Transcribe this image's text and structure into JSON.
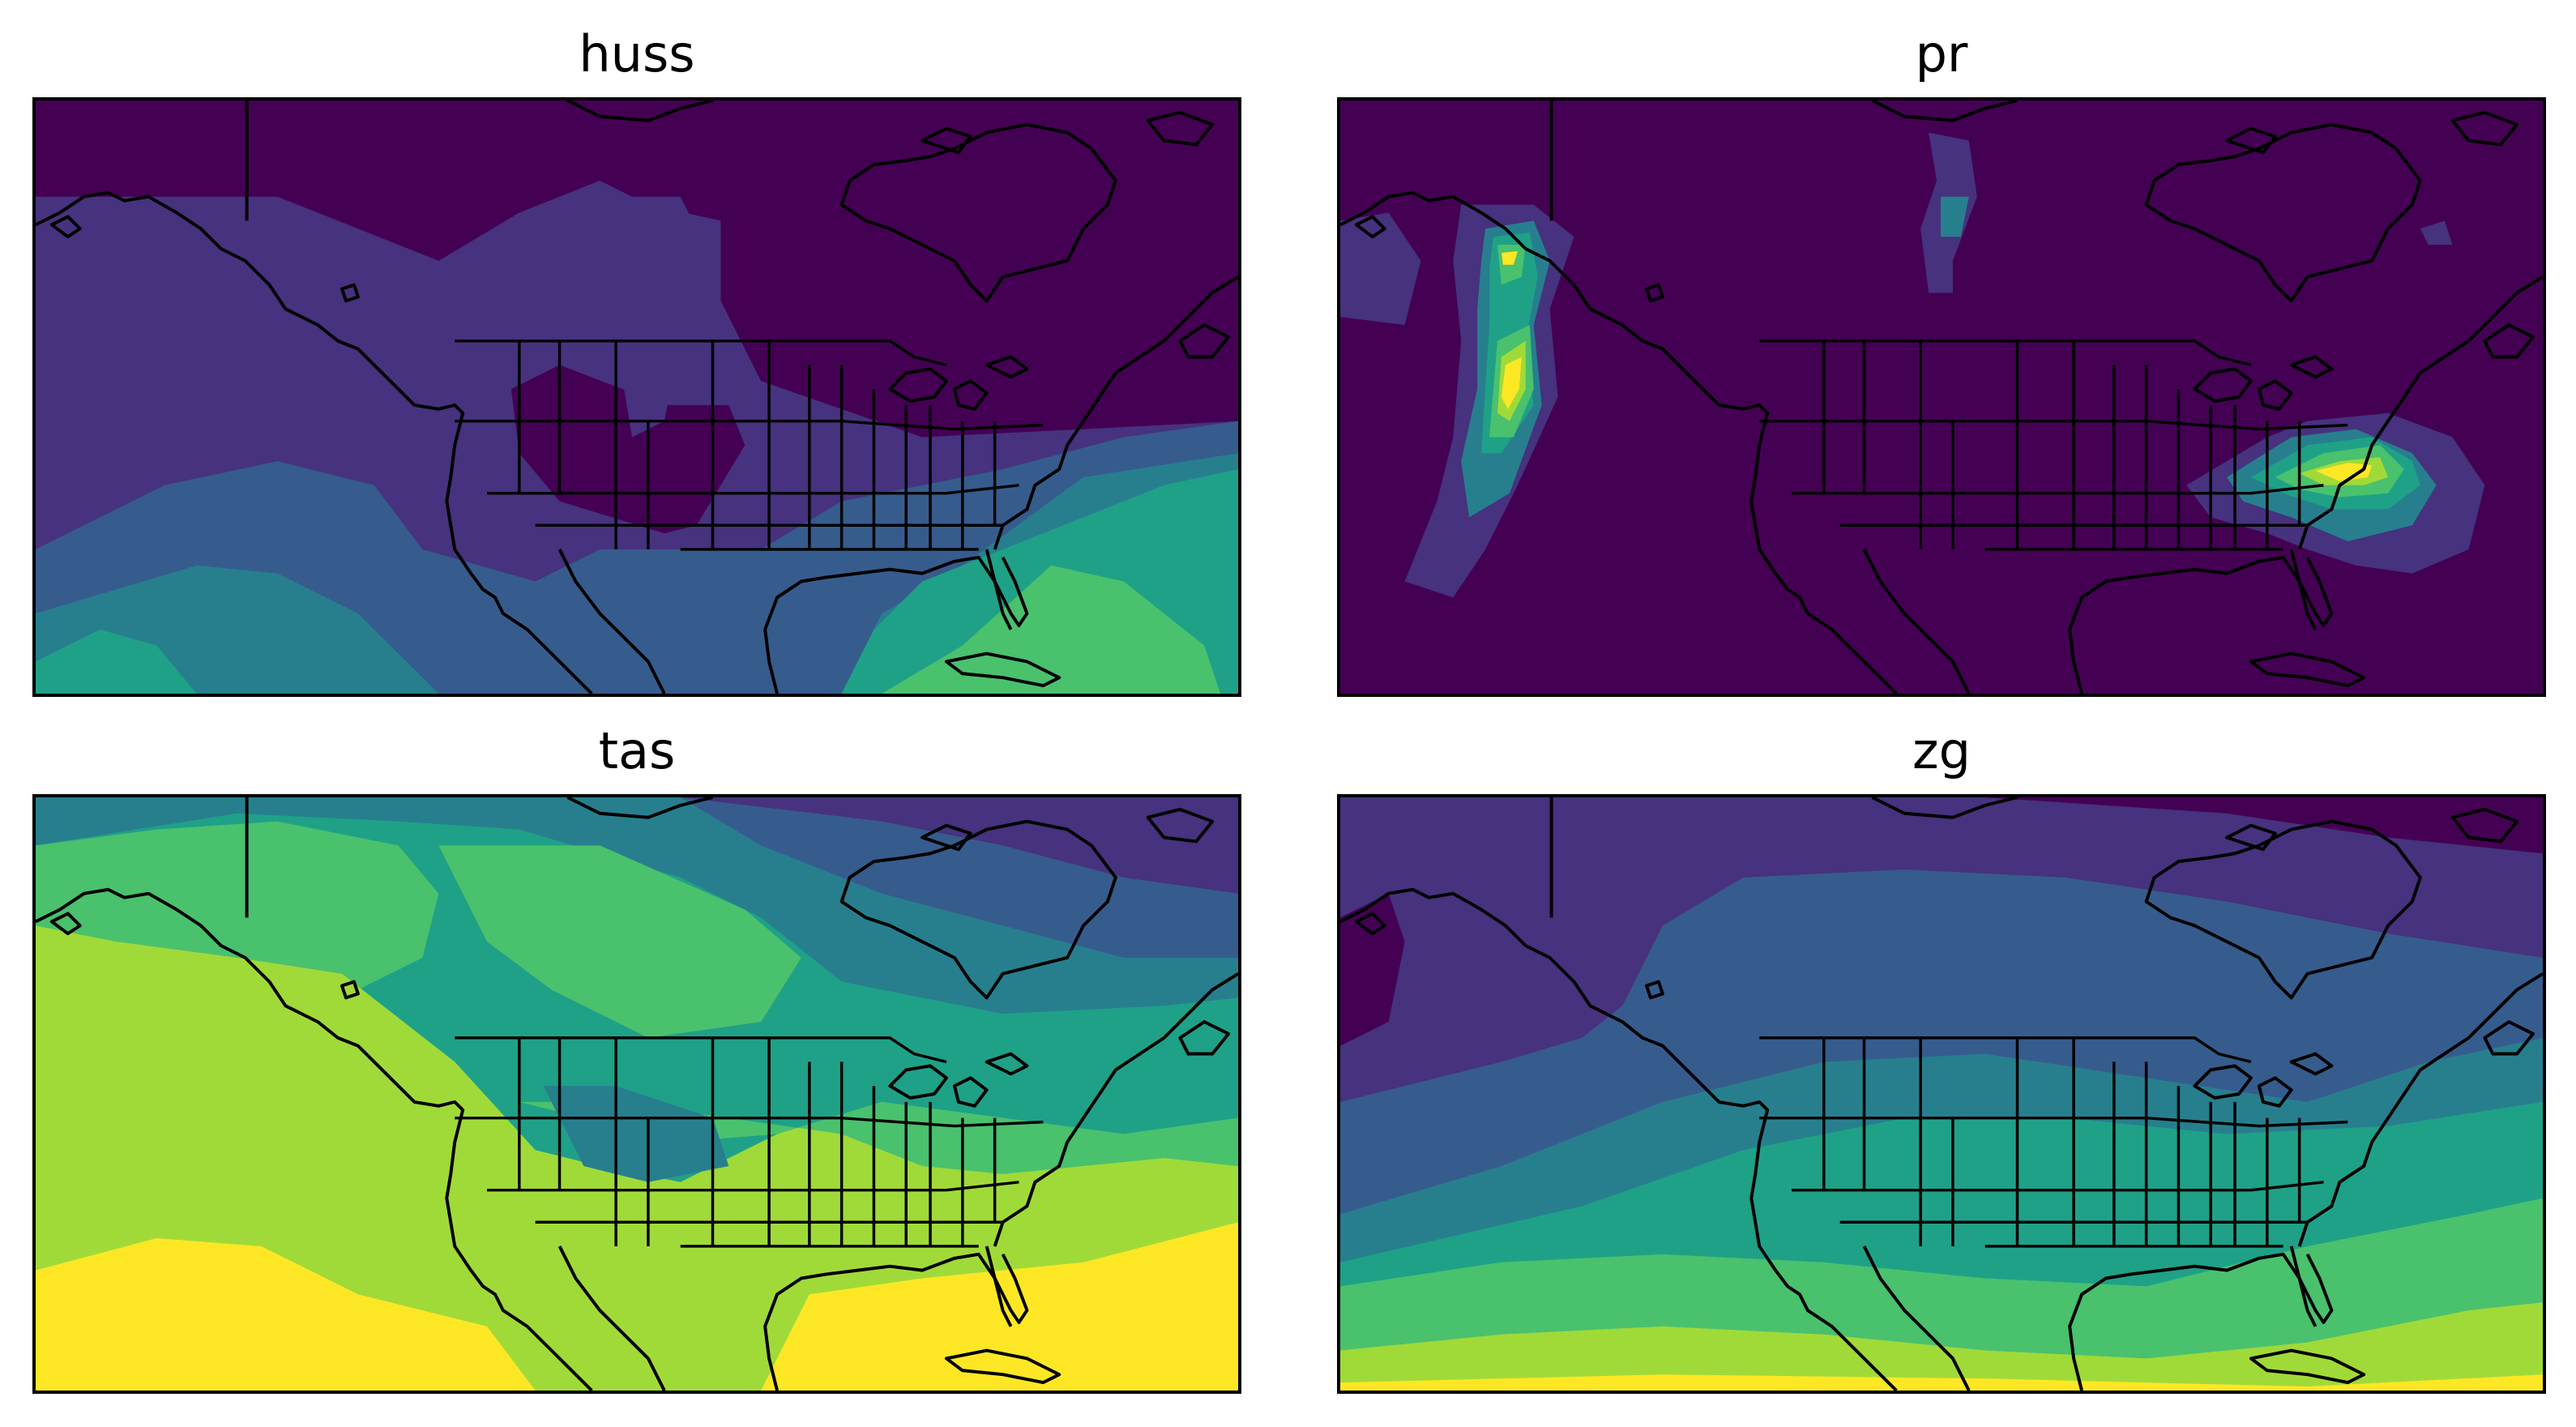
{
  "figure": {
    "panels": [
      {
        "id": "huss",
        "title": "huss"
      },
      {
        "id": "pr",
        "title": "pr"
      },
      {
        "id": "tas",
        "title": "tas"
      },
      {
        "id": "zg",
        "title": "zg"
      }
    ]
  },
  "colormap": {
    "name": "viridis",
    "levels": [
      "#440154",
      "#46327e",
      "#365c8d",
      "#277f8e",
      "#1fa187",
      "#4ac16d",
      "#a0da39",
      "#fde725"
    ]
  }
}
